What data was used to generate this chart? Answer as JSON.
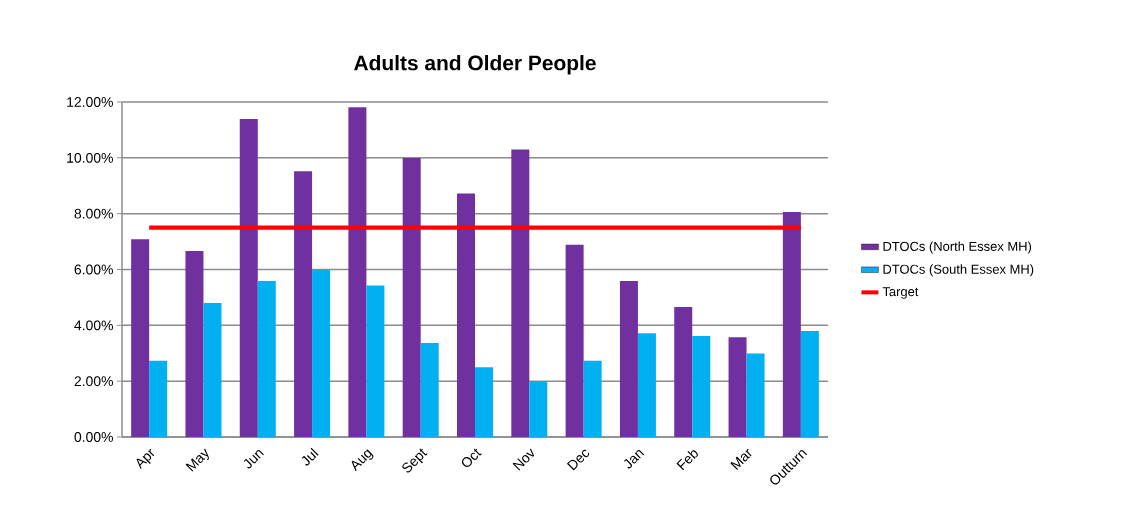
{
  "chart_data": {
    "type": "bar",
    "title": "Adults and Older People",
    "categories": [
      "Apr",
      "May",
      "Jun",
      "Jul",
      "Aug",
      "Sept",
      "Oct",
      "Nov",
      "Dec",
      "Jan",
      "Feb",
      "Mar",
      "Outturn"
    ],
    "series": [
      {
        "name": "DTOCs (North Essex MH)",
        "color": "#7030a0",
        "values": [
          7.08,
          6.66,
          11.39,
          9.52,
          11.81,
          9.99,
          8.72,
          10.3,
          6.89,
          5.59,
          4.66,
          3.57,
          8.06
        ]
      },
      {
        "name": "DTOCs (South Essex MH)",
        "color": "#00b0f0",
        "values": [
          2.73,
          4.8,
          5.59,
          5.98,
          5.43,
          3.37,
          2.5,
          1.99,
          2.73,
          3.72,
          3.62,
          2.99,
          3.8
        ]
      },
      {
        "name": "Target",
        "type": "line",
        "color": "#ff0000",
        "values": [
          7.5,
          7.5,
          7.5,
          7.5,
          7.5,
          7.5,
          7.5,
          7.5,
          7.5,
          7.5,
          7.5,
          7.5,
          7.5
        ]
      }
    ],
    "ylim": [
      0,
      12
    ],
    "yticks": [
      {
        "value": 0,
        "label": "0.00%"
      },
      {
        "value": 2,
        "label": "2.00%"
      },
      {
        "value": 4,
        "label": "4.00%"
      },
      {
        "value": 6,
        "label": "6.00%"
      },
      {
        "value": 8,
        "label": "8.00%"
      },
      {
        "value": 10,
        "label": "10.00%"
      },
      {
        "value": 12,
        "label": "12.00%"
      }
    ],
    "grid": "y",
    "legend": "right",
    "marker": "none",
    "line_style": "solid"
  }
}
